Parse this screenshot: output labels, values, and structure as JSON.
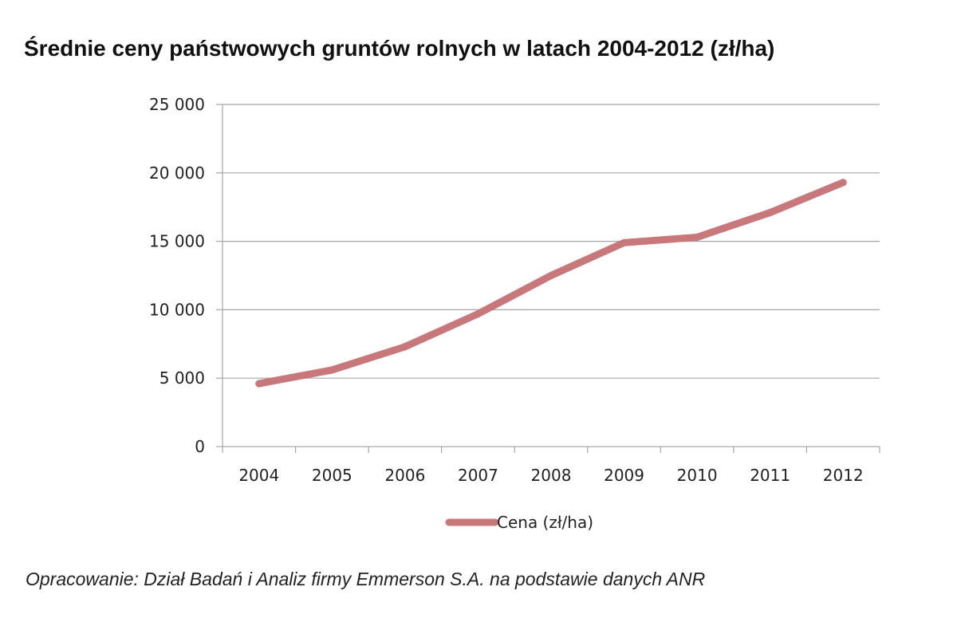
{
  "title": "Średnie ceny państwowych gruntów rolnych w latach 2004-2012 (zł/ha)",
  "source": "Opracowanie: Dział Badań i Analiz firmy Emmerson S.A. na podstawie danych ANR",
  "chart_data": {
    "type": "line",
    "title": "Średnie ceny państwowych gruntów rolnych w latach 2004-2012 (zł/ha)",
    "categories": [
      "2004",
      "2005",
      "2006",
      "2007",
      "2008",
      "2009",
      "2010",
      "2011",
      "2012"
    ],
    "series": [
      {
        "name": "Cena (zł/ha)",
        "color": "#c8787a",
        "values": [
          4600,
          5600,
          7300,
          9700,
          12500,
          14900,
          15300,
          17100,
          19300
        ]
      }
    ],
    "y_ticks": [
      "0",
      "5 000",
      "10 000",
      "15 000",
      "20 000",
      "25 000"
    ],
    "ylim": [
      0,
      25000
    ],
    "ystep": 5000,
    "grid": true,
    "legend_position": "bottom",
    "xlabel": "",
    "ylabel": ""
  }
}
